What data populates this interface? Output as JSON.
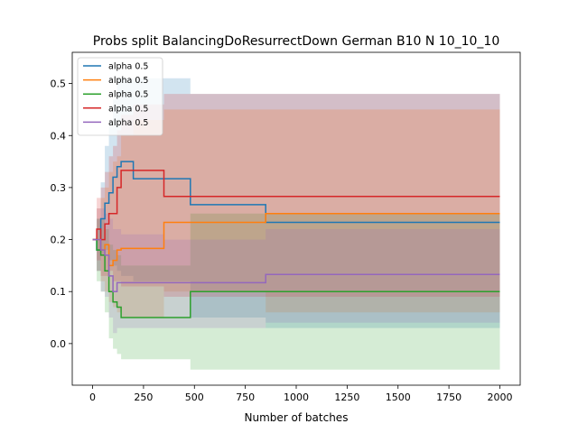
{
  "chart_data": {
    "type": "line",
    "title": "Probs split BalancingDoResurrectDown German B10 N 10_10_10",
    "xlabel": "Number of batches",
    "ylabel": "",
    "xlim": [
      -100,
      2100
    ],
    "ylim": [
      -0.08,
      0.56
    ],
    "xticks": [
      0,
      250,
      500,
      750,
      1000,
      1250,
      1500,
      1750,
      2000
    ],
    "yticks": [
      0.0,
      0.1,
      0.2,
      0.3,
      0.4,
      0.5
    ],
    "xtick_labels": [
      "0",
      "250",
      "500",
      "750",
      "1000",
      "1250",
      "1500",
      "1750",
      "2000"
    ],
    "ytick_labels": [
      "0.0",
      "0.1",
      "0.2",
      "0.3",
      "0.4",
      "0.5"
    ],
    "grid": false,
    "legend": {
      "position": "top-left",
      "entries": [
        "alpha 0.5",
        "alpha 0.5",
        "alpha 0.5",
        "alpha 0.5",
        "alpha 0.5"
      ]
    },
    "series": [
      {
        "color": "#1f77b4",
        "x": [
          0,
          20,
          40,
          60,
          80,
          100,
          120,
          140,
          200,
          350,
          480,
          840,
          850,
          860,
          1080,
          1090,
          2000
        ],
        "y": [
          0.2,
          0.18,
          0.24,
          0.27,
          0.29,
          0.32,
          0.34,
          0.35,
          0.317,
          0.317,
          0.267,
          0.267,
          0.233,
          0.233,
          0.233,
          0.233,
          0.233
        ],
        "upper": [
          0.2,
          0.24,
          0.31,
          0.38,
          0.43,
          0.47,
          0.51,
          0.51,
          0.51,
          0.51,
          0.48,
          0.48,
          0.48,
          0.48,
          0.48,
          0.48,
          0.48
        ],
        "lower": [
          0.2,
          0.14,
          0.17,
          0.18,
          0.16,
          0.15,
          0.14,
          0.13,
          0.12,
          0.12,
          0.05,
          0.05,
          0.03,
          0.03,
          0.03,
          0.03,
          0.03
        ]
      },
      {
        "color": "#ff7f0e",
        "x": [
          0,
          20,
          40,
          60,
          80,
          100,
          120,
          140,
          200,
          350,
          480,
          840,
          850,
          860,
          1080,
          1090,
          2000
        ],
        "y": [
          0.2,
          0.2,
          0.18,
          0.19,
          0.15,
          0.16,
          0.18,
          0.183,
          0.183,
          0.233,
          0.233,
          0.233,
          0.25,
          0.25,
          0.25,
          0.25,
          0.25
        ],
        "upper": [
          0.2,
          0.26,
          0.28,
          0.3,
          0.33,
          0.35,
          0.36,
          0.4,
          0.43,
          0.45,
          0.45,
          0.45,
          0.45,
          0.45,
          0.45,
          0.45,
          0.45
        ],
        "lower": [
          0.2,
          0.14,
          0.12,
          0.1,
          0.08,
          0.07,
          0.06,
          0.05,
          0.05,
          0.1,
          0.1,
          0.1,
          0.06,
          0.06,
          0.06,
          0.06,
          0.06
        ]
      },
      {
        "color": "#2ca02c",
        "x": [
          0,
          20,
          40,
          60,
          80,
          100,
          120,
          140,
          200,
          350,
          480,
          840,
          850,
          860,
          1080,
          1090,
          2000
        ],
        "y": [
          0.2,
          0.18,
          0.17,
          0.14,
          0.1,
          0.08,
          0.07,
          0.05,
          0.05,
          0.05,
          0.1,
          0.1,
          0.1,
          0.1,
          0.1,
          0.1,
          0.1
        ],
        "upper": [
          0.2,
          0.24,
          0.24,
          0.22,
          0.19,
          0.18,
          0.17,
          0.15,
          0.15,
          0.15,
          0.25,
          0.25,
          0.25,
          0.25,
          0.25,
          0.25,
          0.25
        ],
        "lower": [
          0.2,
          0.12,
          0.1,
          0.06,
          0.01,
          -0.01,
          -0.02,
          -0.03,
          -0.03,
          -0.03,
          -0.05,
          -0.05,
          -0.05,
          -0.05,
          -0.05,
          -0.05,
          -0.05
        ]
      },
      {
        "color": "#d62728",
        "x": [
          0,
          20,
          40,
          60,
          80,
          100,
          120,
          140,
          200,
          350,
          480,
          840,
          850,
          860,
          1080,
          1090,
          2000
        ],
        "y": [
          0.2,
          0.22,
          0.2,
          0.23,
          0.25,
          0.25,
          0.3,
          0.333,
          0.333,
          0.283,
          0.283,
          0.283,
          0.283,
          0.283,
          0.283,
          0.283,
          0.283
        ],
        "upper": [
          0.2,
          0.28,
          0.3,
          0.33,
          0.36,
          0.38,
          0.41,
          0.44,
          0.46,
          0.48,
          0.48,
          0.48,
          0.48,
          0.48,
          0.48,
          0.48,
          0.48
        ],
        "lower": [
          0.2,
          0.16,
          0.13,
          0.13,
          0.14,
          0.12,
          0.12,
          0.11,
          0.11,
          0.09,
          0.09,
          0.09,
          0.09,
          0.09,
          0.09,
          0.09,
          0.09
        ]
      },
      {
        "color": "#9467bd",
        "x": [
          0,
          20,
          40,
          60,
          80,
          100,
          120,
          140,
          200,
          350,
          480,
          840,
          850,
          860,
          1080,
          1090,
          2000
        ],
        "y": [
          0.2,
          0.2,
          0.18,
          0.17,
          0.13,
          0.1,
          0.117,
          0.117,
          0.117,
          0.117,
          0.117,
          0.117,
          0.133,
          0.133,
          0.133,
          0.133,
          0.133
        ],
        "upper": [
          0.2,
          0.26,
          0.26,
          0.25,
          0.24,
          0.22,
          0.22,
          0.21,
          0.21,
          0.2,
          0.2,
          0.2,
          0.22,
          0.22,
          0.22,
          0.22,
          0.22
        ],
        "lower": [
          0.2,
          0.14,
          0.1,
          0.09,
          0.05,
          0.02,
          0.03,
          0.03,
          0.03,
          0.03,
          0.03,
          0.03,
          0.04,
          0.04,
          0.04,
          0.04,
          0.04
        ]
      }
    ]
  }
}
